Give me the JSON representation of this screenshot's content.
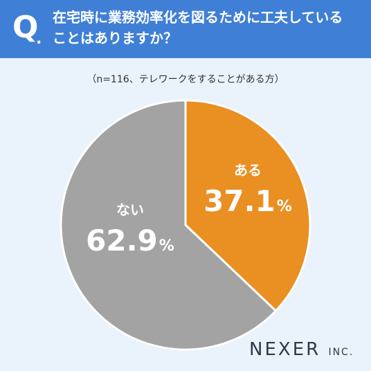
{
  "question": {
    "mark": "Q",
    "dot": ".",
    "lines": [
      "在宅時に業務効率化を図るために工夫している",
      "ことはありますか？"
    ]
  },
  "note": "（n=116、テレワークをすることがある方）",
  "brand": {
    "name": "NEXER",
    "suffix": "INC."
  },
  "colors": {
    "header": "#3f7fd6",
    "yes": "#ea8f22",
    "no": "#a3a3a3",
    "background": "#eaf2fb"
  },
  "chart_data": {
    "type": "pie",
    "title": "在宅時に業務効率化を図るために工夫していることはありますか？",
    "n": 116,
    "slices": [
      {
        "label": "ある",
        "value": 37.1,
        "display": "37.1",
        "unit": "%",
        "color": "#ea8f22"
      },
      {
        "label": "ない",
        "value": 62.9,
        "display": "62.9",
        "unit": "%",
        "color": "#a3a3a3"
      }
    ]
  }
}
